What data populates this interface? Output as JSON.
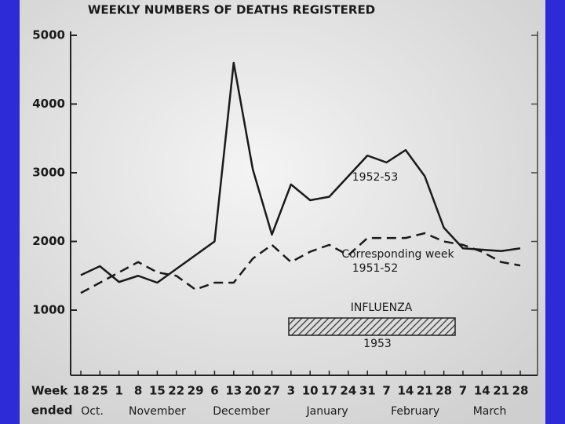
{
  "chart_data": {
    "type": "line",
    "title": "WEEKLY NUMBERS OF DEATHS REGISTERED",
    "x_label_lines": [
      "Week",
      "ended"
    ],
    "categories": [
      "18",
      "25",
      "1",
      "8",
      "15",
      "22",
      "29",
      "6",
      "13",
      "20",
      "27",
      "3",
      "10",
      "17",
      "24",
      "31",
      "7",
      "14",
      "21",
      "28",
      "7",
      "14",
      "21",
      "28"
    ],
    "months": [
      {
        "label": "Oct.",
        "index": 0.6
      },
      {
        "label": "November",
        "index": 4
      },
      {
        "label": "December",
        "index": 8.4
      },
      {
        "label": "January",
        "index": 12.9
      },
      {
        "label": "February",
        "index": 17.5
      },
      {
        "label": "March",
        "index": 21.4
      }
    ],
    "series": [
      {
        "name": "1952-53",
        "color": "#1a1a1a",
        "dashed": false,
        "values": [
          1510,
          1640,
          1410,
          1500,
          1400,
          1600,
          1800,
          2000,
          4600,
          3050,
          2100,
          2830,
          2600,
          2650,
          2950,
          3250,
          3150,
          3330,
          2950,
          2200,
          1900,
          1880,
          1860,
          1900
        ]
      },
      {
        "name": "Corresponding week 1951-52",
        "color": "#1a1a1a",
        "dashed": true,
        "values": [
          1250,
          1400,
          1550,
          1700,
          1550,
          1500,
          1300,
          1400,
          1400,
          1750,
          1950,
          1700,
          1850,
          1950,
          1800,
          2050,
          2050,
          2050,
          2120,
          2000,
          1950,
          1850,
          1700,
          1650
        ]
      }
    ],
    "annotations": {
      "series_0": "1952-53",
      "series_1_line1": "Corresponding week",
      "series_1_line2": "1951-52",
      "influenza": "INFLUENZA",
      "influenza_year": "1953"
    },
    "ylim": [
      0,
      5000
    ],
    "yticks": [
      1000,
      2000,
      3000,
      4000,
      5000
    ]
  }
}
